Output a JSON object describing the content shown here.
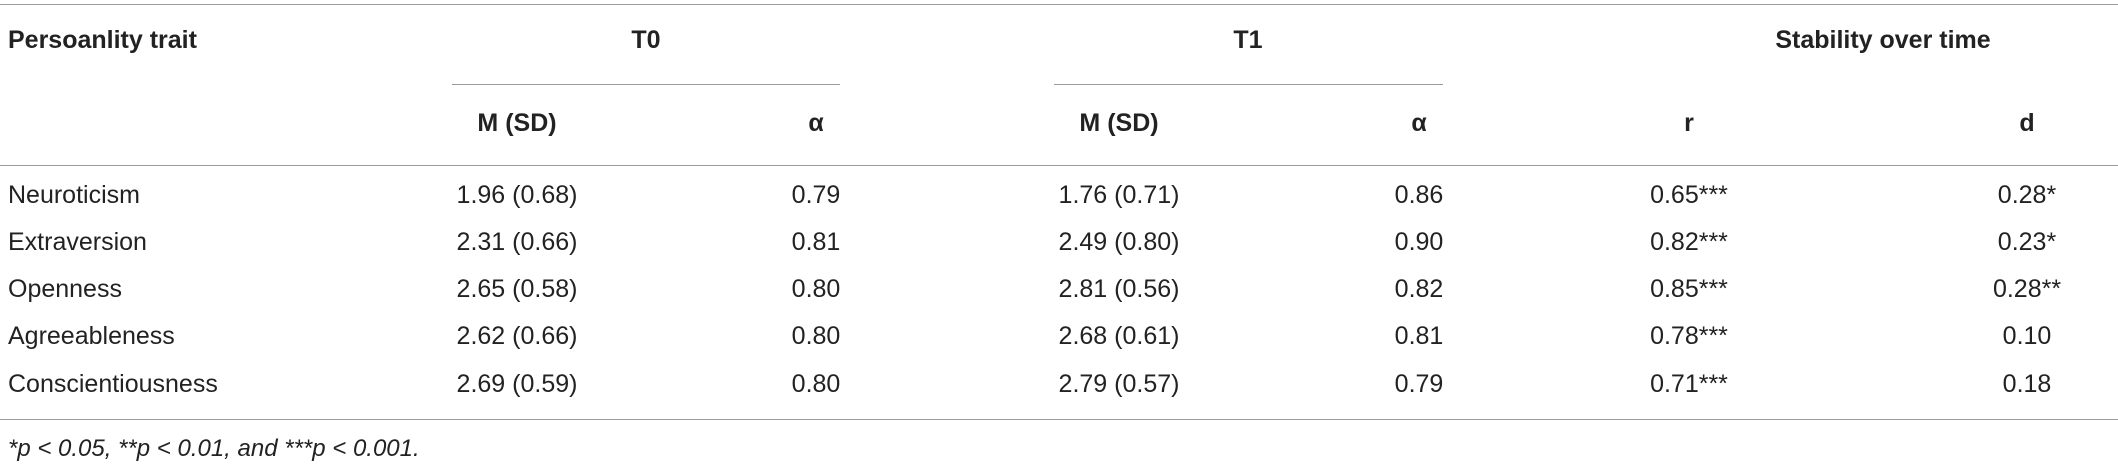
{
  "table": {
    "group_headers": [
      "Persoanlity trait",
      "T0",
      "T1",
      "Stability over time"
    ],
    "sub_headers": [
      "M (SD)",
      "α",
      "M (SD)",
      "α",
      "r",
      "d"
    ],
    "rows": [
      [
        "Neuroticism",
        "1.96 (0.68)",
        "0.79",
        "1.76 (0.71)",
        "0.86",
        "0.65***",
        "0.28*"
      ],
      [
        "Extraversion",
        "2.31 (0.66)",
        "0.81",
        "2.49 (0.80)",
        "0.90",
        "0.82***",
        "0.23*"
      ],
      [
        "Openness",
        "2.65 (0.58)",
        "0.80",
        "2.81 (0.56)",
        "0.82",
        "0.85***",
        "0.28**"
      ],
      [
        "Agreeableness",
        "2.62 (0.66)",
        "0.80",
        "2.68 (0.61)",
        "0.81",
        "0.78***",
        "0.10"
      ],
      [
        "Conscientiousness",
        "2.69 (0.59)",
        "0.80",
        "2.79 (0.57)",
        "0.79",
        "0.71***",
        "0.18"
      ]
    ],
    "footnote": "*p < 0.05, **p < 0.01, and ***p < 0.001."
  }
}
